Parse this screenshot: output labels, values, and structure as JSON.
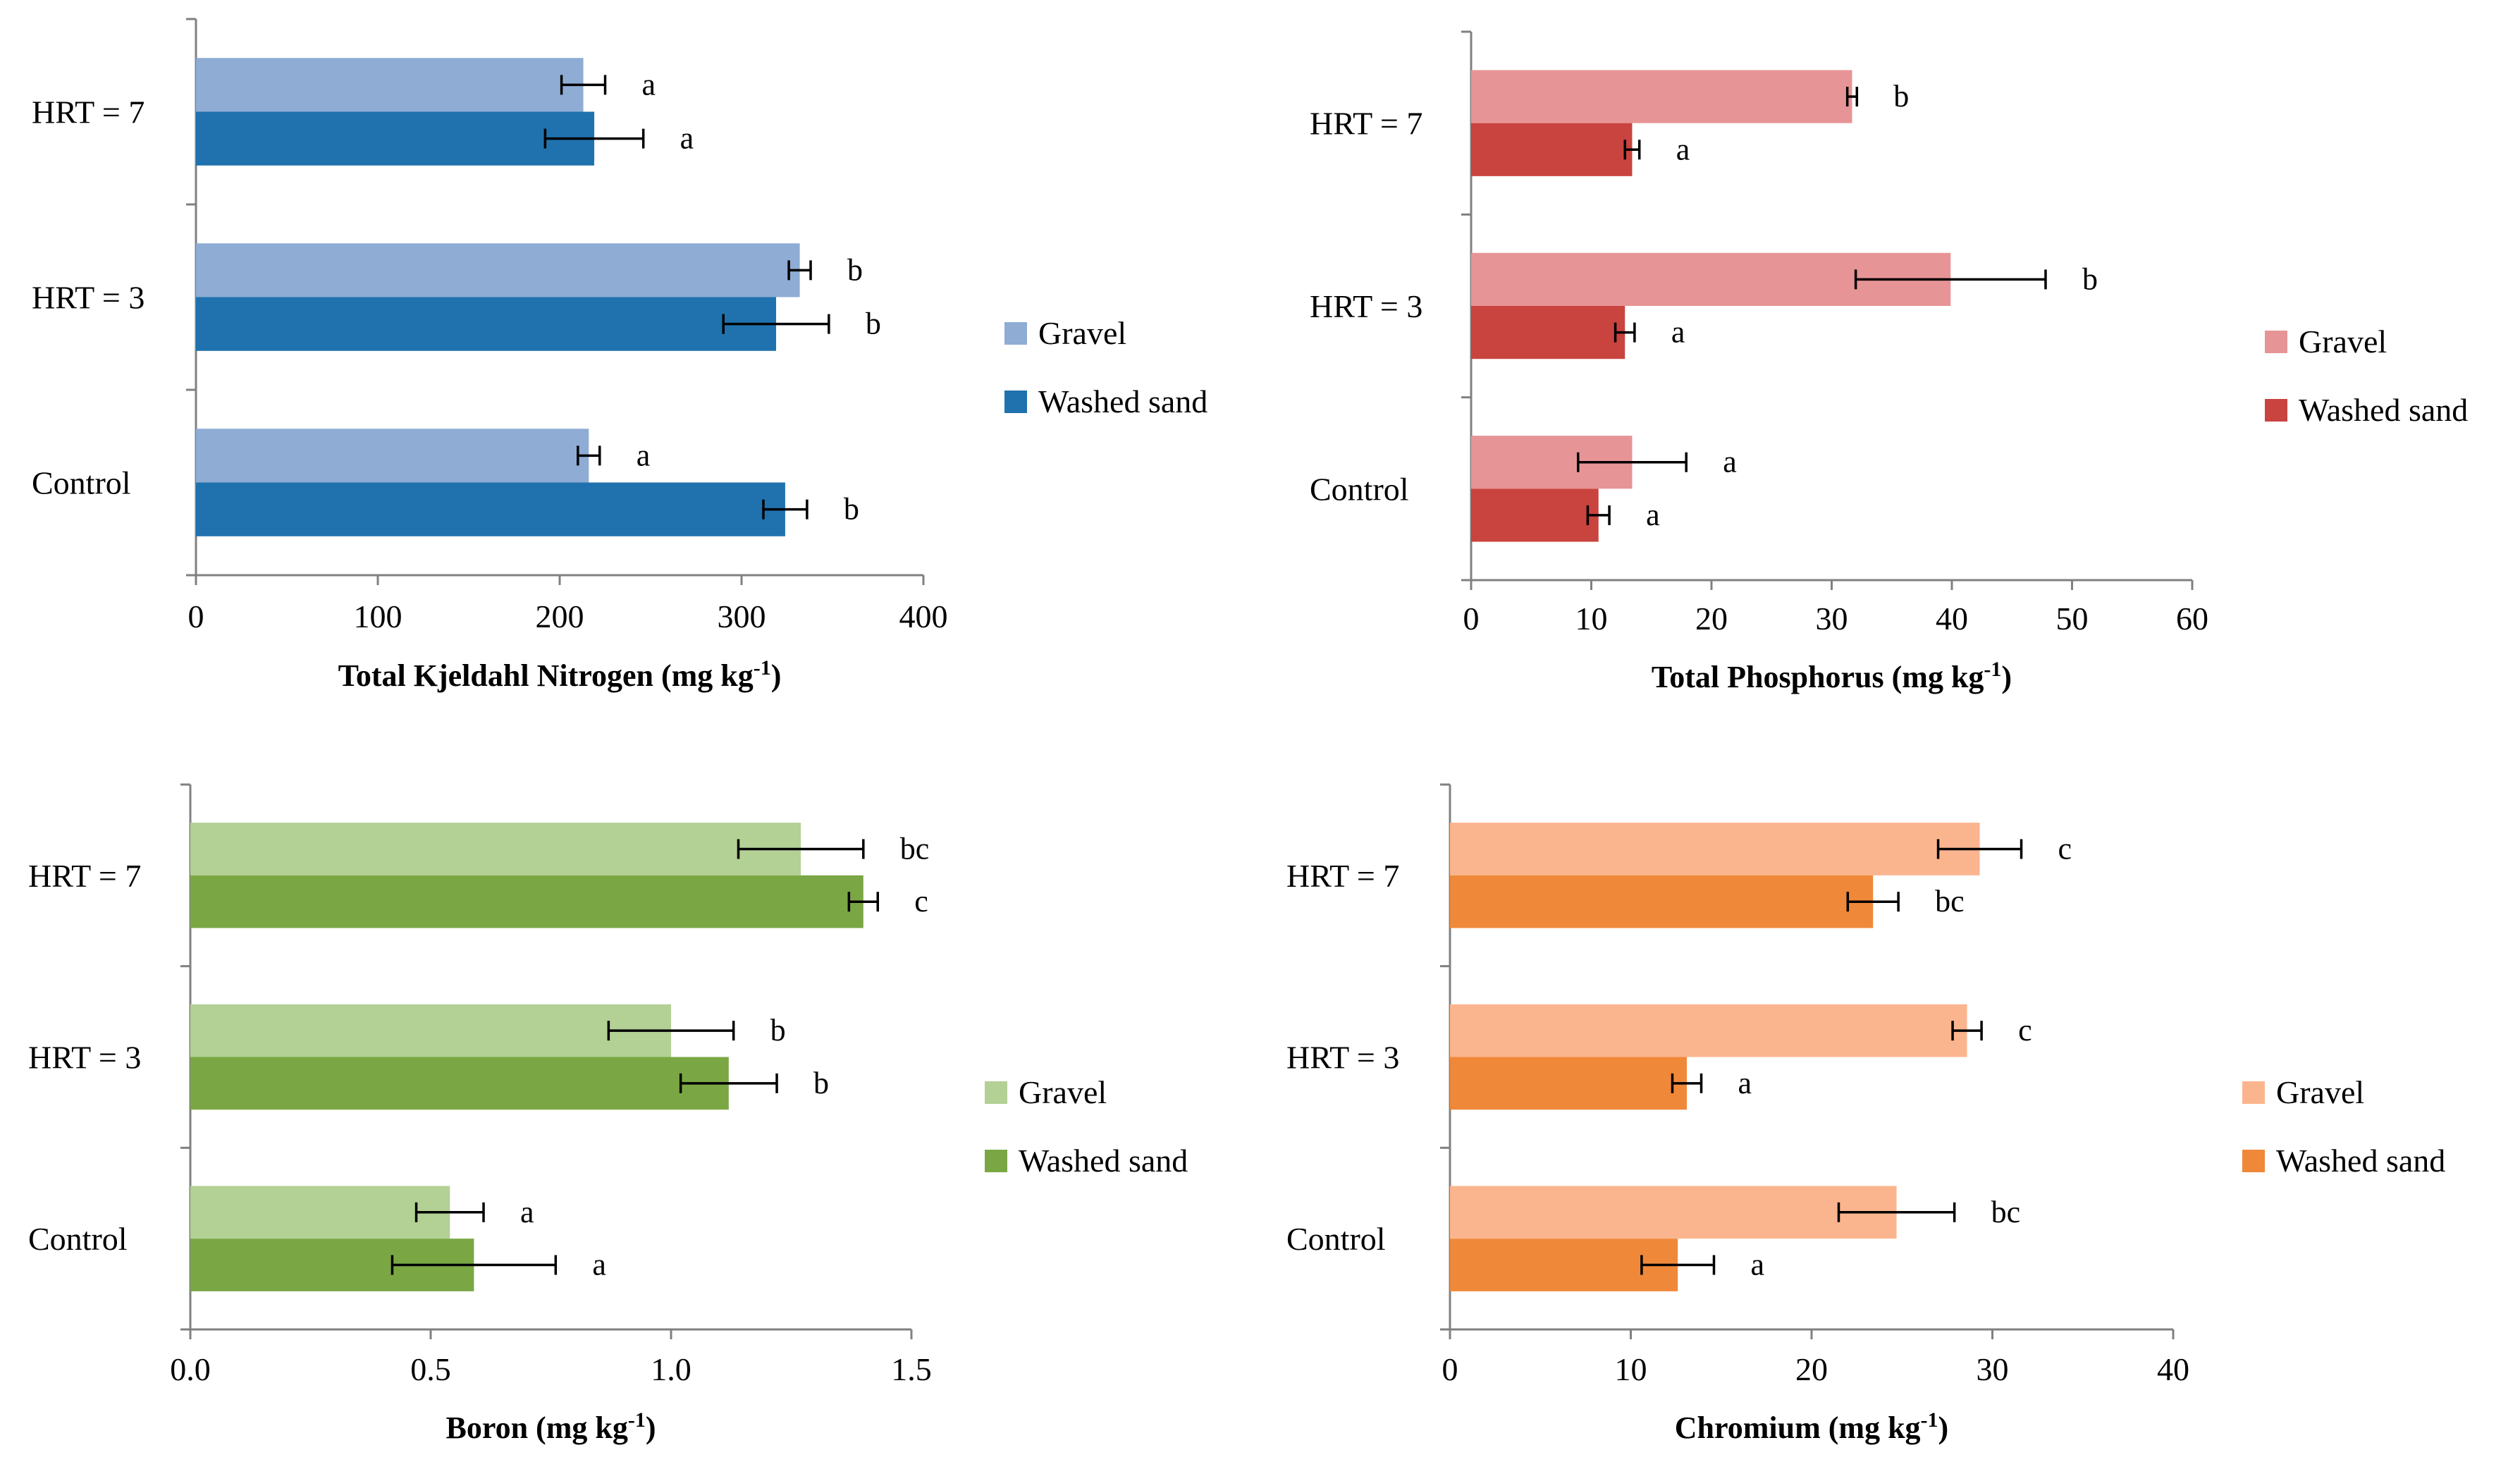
{
  "chart_data": [
    {
      "type": "bar",
      "orientation": "horizontal",
      "title": "",
      "xlabel": "Total Kjeldahl Nitrogen (mg kg",
      "xlabel_sup": "-1",
      "xlabel_close": ")",
      "xlim": [
        0,
        400
      ],
      "xticks": [
        "0",
        "100",
        "200",
        "300",
        "400"
      ],
      "xtick_values": [
        0,
        100,
        200,
        300,
        400
      ],
      "categories": [
        "HRT = 7",
        "HRT = 3",
        "Control"
      ],
      "series": [
        {
          "name": "Gravel",
          "color": "#8eacd4",
          "values": [
            213,
            332,
            216
          ],
          "errors": [
            12,
            6,
            6
          ],
          "labels": [
            "a",
            "b",
            "a"
          ]
        },
        {
          "name": "Washed sand",
          "color": "#1f72ad",
          "values": [
            219,
            319,
            324
          ],
          "errors": [
            27,
            29,
            12
          ],
          "labels": [
            "a",
            "b",
            "b"
          ]
        }
      ],
      "legend": {
        "position": "right",
        "items": [
          "Gravel",
          "Washed sand"
        ]
      }
    },
    {
      "type": "bar",
      "orientation": "horizontal",
      "title": "",
      "xlabel": "Total Phosphorus (mg kg",
      "xlabel_sup": "-1",
      "xlabel_close": ")",
      "xlim": [
        0,
        60
      ],
      "xticks": [
        "0",
        "10",
        "20",
        "30",
        "40",
        "50",
        "60"
      ],
      "xtick_values": [
        0,
        10,
        20,
        30,
        40,
        50,
        60
      ],
      "categories": [
        "HRT = 7",
        "HRT = 3",
        "Control"
      ],
      "series": [
        {
          "name": "Gravel",
          "color": "#e79496",
          "values": [
            31.7,
            39.9,
            13.4
          ],
          "errors": [
            0.4,
            7.9,
            4.5
          ],
          "labels": [
            "b",
            "b",
            "a"
          ]
        },
        {
          "name": "Washed sand",
          "color": "#c9433f",
          "values": [
            13.4,
            12.8,
            10.6
          ],
          "errors": [
            0.6,
            0.8,
            0.9
          ],
          "labels": [
            "a",
            "a",
            "a"
          ]
        }
      ],
      "legend": {
        "position": "right",
        "items": [
          "Gravel",
          "Washed sand"
        ]
      }
    },
    {
      "type": "bar",
      "orientation": "horizontal",
      "title": "",
      "xlabel": "Boron (mg kg",
      "xlabel_sup": "-1",
      "xlabel_close": ")",
      "xlim": [
        0,
        1.5
      ],
      "xticks": [
        "0.0",
        "0.5",
        "1.0",
        "1.5"
      ],
      "xtick_values": [
        0,
        0.5,
        1.0,
        1.5
      ],
      "categories": [
        "HRT = 7",
        "HRT = 3",
        "Control"
      ],
      "series": [
        {
          "name": "Gravel",
          "color": "#b3d095",
          "values": [
            1.27,
            1.0,
            0.54
          ],
          "errors": [
            0.13,
            0.13,
            0.07
          ],
          "labels": [
            "bc",
            "b",
            "a"
          ]
        },
        {
          "name": "Washed sand",
          "color": "#7aa744",
          "values": [
            1.4,
            1.12,
            0.59
          ],
          "errors": [
            0.03,
            0.1,
            0.17
          ],
          "labels": [
            "c",
            "b",
            "a"
          ]
        }
      ],
      "legend": {
        "position": "right",
        "items": [
          "Gravel",
          "Washed sand"
        ]
      }
    },
    {
      "type": "bar",
      "orientation": "horizontal",
      "title": "",
      "xlabel": "Chromium (mg kg",
      "xlabel_sup": "-1",
      "xlabel_close": ")",
      "xlim": [
        0,
        40
      ],
      "xticks": [
        "0",
        "10",
        "20",
        "30",
        "40"
      ],
      "xtick_values": [
        0,
        10,
        20,
        30,
        40
      ],
      "categories": [
        "HRT = 7",
        "HRT = 3",
        "Control"
      ],
      "series": [
        {
          "name": "Gravel",
          "color": "#fbb58e",
          "values": [
            29.3,
            28.6,
            24.7
          ],
          "errors": [
            2.3,
            0.8,
            3.2
          ],
          "labels": [
            "c",
            "c",
            "bc"
          ]
        },
        {
          "name": "Washed sand",
          "color": "#f0883a",
          "values": [
            23.4,
            13.1,
            12.6
          ],
          "errors": [
            1.4,
            0.8,
            2.0
          ],
          "labels": [
            "bc",
            "a",
            "a"
          ]
        }
      ],
      "legend": {
        "position": "right",
        "items": [
          "Gravel",
          "Washed sand"
        ]
      }
    }
  ]
}
